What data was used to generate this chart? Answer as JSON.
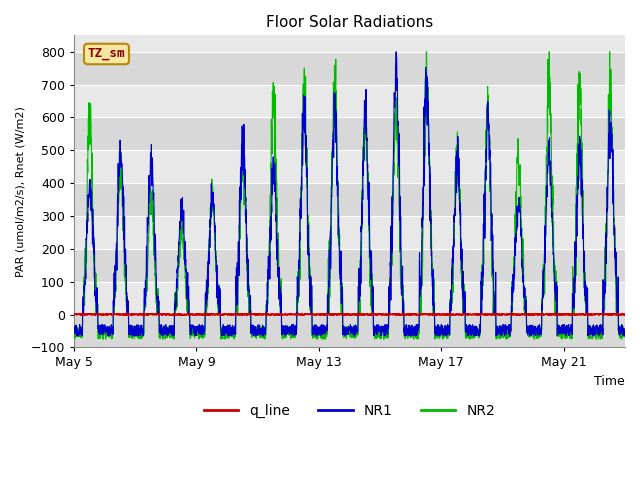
{
  "title": "Floor Solar Radiations",
  "xlabel": "Time",
  "ylabel": "PAR (umol/m2/s), Rnet (W/m2)",
  "ylim": [
    -100,
    850
  ],
  "yticks": [
    -100,
    0,
    100,
    200,
    300,
    400,
    500,
    600,
    700,
    800
  ],
  "xtick_labels": [
    "May 5",
    "May 9",
    "May 13",
    "May 17",
    "May 21"
  ],
  "xtick_positions": [
    0,
    4,
    8,
    12,
    16
  ],
  "legend_labels": [
    "q_line",
    "NR1",
    "NR2"
  ],
  "legend_colors": [
    "#cc0000",
    "#0000cc",
    "#00bb00"
  ],
  "annotation_text": "TZ_sm",
  "annotation_bg": "#f5e6a0",
  "annotation_border": "#b8860b",
  "fig_bg": "#ffffff",
  "plot_bg": "#e8e8e8",
  "band_colors": [
    "#d8d8d8",
    "#e8e8e8"
  ],
  "grid_color": "#ffffff",
  "n_days": 18,
  "points_per_day": 144,
  "nr1_day_peaks": [
    390,
    500,
    460,
    315,
    350,
    520,
    415,
    600,
    605,
    605,
    730,
    695,
    460,
    595,
    335,
    490,
    495,
    565
  ],
  "nr2_day_peaks": [
    610,
    450,
    370,
    270,
    365,
    520,
    665,
    675,
    705,
    600,
    600,
    720,
    490,
    600,
    490,
    720,
    705,
    690
  ],
  "nr1_night_min": -65,
  "nr1_night_max": -30,
  "nr2_night_min": -75,
  "nr2_night_max": -35
}
